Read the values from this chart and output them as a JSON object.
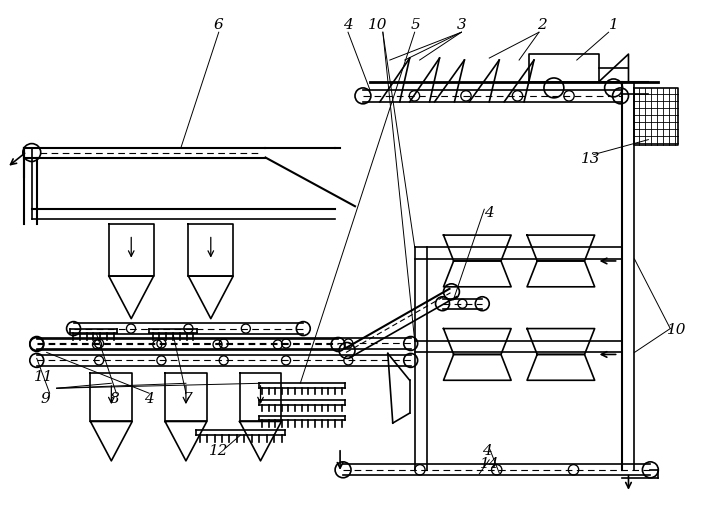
{
  "bg_color": "#ffffff",
  "line_color": "#000000",
  "figsize": [
    7.07,
    5.06
  ],
  "dpi": 100
}
